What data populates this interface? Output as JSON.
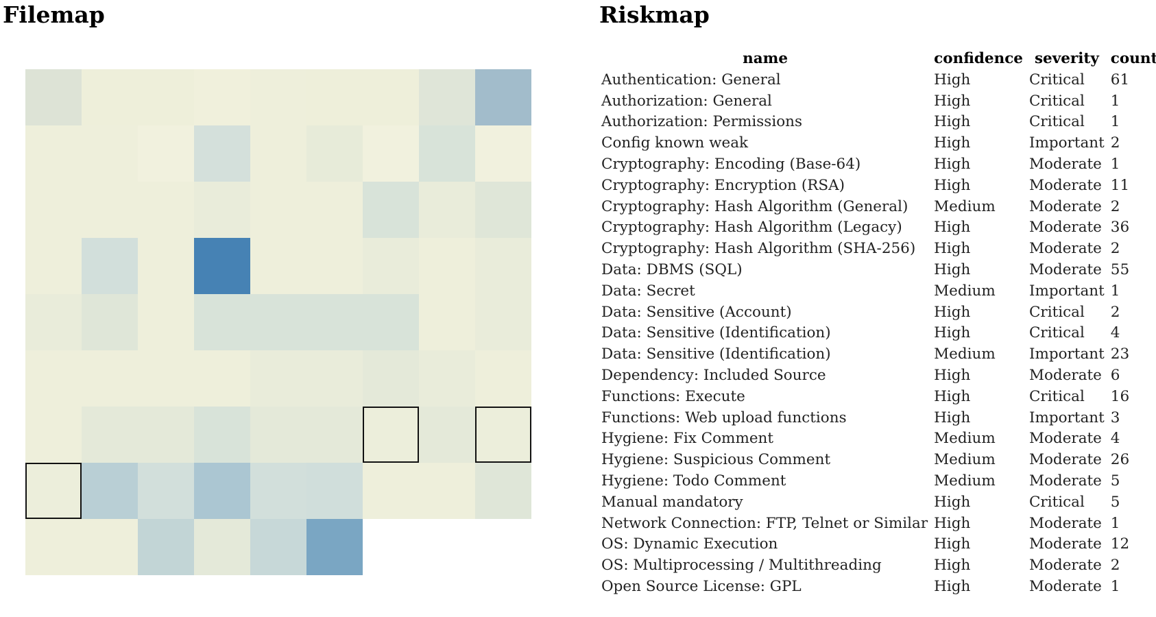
{
  "filemap": {
    "title": "Filemap",
    "rows": 9,
    "cols": 9,
    "colors": {
      "empty": "#eeeedb",
      "light": "#dde3d8",
      "mid": "#a8c4cf",
      "dark": "#4682b4",
      "selected_border": "#111111"
    },
    "cells": [
      [
        "#dde3d6",
        "#eeefda",
        "#eeefda",
        "#f0f0dc",
        "#eeefdb",
        "#eeefda",
        "#eeefda",
        "#dfe5d8",
        "#a2bccb"
      ],
      [
        "#eeefdb",
        "#eeefdb",
        "#f1f1de",
        "#d4e0db",
        "#eeefdb",
        "#e7ebd9",
        "#f1f1de",
        "#d8e3d9",
        "#f1f1de"
      ],
      [
        "#eeefdb",
        "#eeefdb",
        "#eeefdb",
        "#e9ecda",
        "#eeefdb",
        "#eeefdb",
        "#d8e3d9",
        "#e9ecda",
        "#dfe6d8"
      ],
      [
        "#eeefdb",
        "#d2dfdb",
        "#eeefdb",
        "#4682b4",
        "#eeefdb",
        "#eeefdb",
        "#e9ecda",
        "#eeefdb",
        "#e9ecda"
      ],
      [
        "#e9ecda",
        "#dfe6d8",
        "#eeefdb",
        "#d8e3d9",
        "#d8e3d9",
        "#d8e3d9",
        "#d8e3d9",
        "#eeefdb",
        "#e9ecda"
      ],
      [
        "#eeefdb",
        "#eeefdb",
        "#eeefdb",
        "#eeefdb",
        "#e9ecda",
        "#e9ecda",
        "#e4e9d9",
        "#e9ecda",
        "#eeefdb"
      ],
      [
        "#eeefdb",
        "#e4e9d9",
        "#e4e9d9",
        "#d8e3d9",
        "#e4e9d9",
        "#e4e9d9",
        "#eceedb",
        "#e4e9d9",
        "#eceedb"
      ],
      [
        "#eceedb",
        "#b9cfd5",
        "#d2dfdb",
        "#abc6d2",
        "#d2dfdb",
        "#d0dedb",
        "#eeefdb",
        "#eeefdb",
        "#dfe6d8"
      ],
      [
        "#eeefdb",
        "#eeefdb",
        "#c2d5d6",
        "#e4e9d9",
        "#c7d8d8",
        "#7aa6c3",
        null,
        null,
        null
      ]
    ],
    "selected": [
      [
        6,
        6
      ],
      [
        6,
        8
      ],
      [
        7,
        0
      ]
    ]
  },
  "riskmap": {
    "title": "Riskmap",
    "columns": {
      "name": "name",
      "confidence": "confidence",
      "severity": "severity",
      "count": "count"
    },
    "rows": [
      {
        "name": "Authentication: General",
        "confidence": "High",
        "severity": "Critical",
        "count": "61"
      },
      {
        "name": "Authorization: General",
        "confidence": "High",
        "severity": "Critical",
        "count": "1"
      },
      {
        "name": "Authorization: Permissions",
        "confidence": "High",
        "severity": "Critical",
        "count": "1"
      },
      {
        "name": "Config known weak",
        "confidence": "High",
        "severity": "Important",
        "count": "2"
      },
      {
        "name": "Cryptography: Encoding (Base-64)",
        "confidence": "High",
        "severity": "Moderate",
        "count": "1"
      },
      {
        "name": "Cryptography: Encryption (RSA)",
        "confidence": "High",
        "severity": "Moderate",
        "count": "11"
      },
      {
        "name": "Cryptography: Hash Algorithm (General)",
        "confidence": "Medium",
        "severity": "Moderate",
        "count": "2"
      },
      {
        "name": "Cryptography: Hash Algorithm (Legacy)",
        "confidence": "High",
        "severity": "Moderate",
        "count": "36"
      },
      {
        "name": "Cryptography: Hash Algorithm (SHA-256)",
        "confidence": "High",
        "severity": "Moderate",
        "count": "2"
      },
      {
        "name": "Data: DBMS (SQL)",
        "confidence": "High",
        "severity": "Moderate",
        "count": "55"
      },
      {
        "name": "Data: Secret",
        "confidence": "Medium",
        "severity": "Important",
        "count": "1"
      },
      {
        "name": "Data: Sensitive (Account)",
        "confidence": "High",
        "severity": "Critical",
        "count": "2"
      },
      {
        "name": "Data: Sensitive (Identification)",
        "confidence": "High",
        "severity": "Critical",
        "count": "4"
      },
      {
        "name": "Data: Sensitive (Identification)",
        "confidence": "Medium",
        "severity": "Important",
        "count": "23"
      },
      {
        "name": "Dependency: Included Source",
        "confidence": "High",
        "severity": "Moderate",
        "count": "6"
      },
      {
        "name": "Functions: Execute",
        "confidence": "High",
        "severity": "Critical",
        "count": "16"
      },
      {
        "name": "Functions: Web upload functions",
        "confidence": "High",
        "severity": "Important",
        "count": "3"
      },
      {
        "name": "Hygiene: Fix Comment",
        "confidence": "Medium",
        "severity": "Moderate",
        "count": "4"
      },
      {
        "name": "Hygiene: Suspicious Comment",
        "confidence": "Medium",
        "severity": "Moderate",
        "count": "26"
      },
      {
        "name": "Hygiene: Todo Comment",
        "confidence": "Medium",
        "severity": "Moderate",
        "count": "5"
      },
      {
        "name": "Manual mandatory",
        "confidence": "High",
        "severity": "Critical",
        "count": "5"
      },
      {
        "name": "Network Connection: FTP, Telnet or Similar",
        "confidence": "High",
        "severity": "Moderate",
        "count": "1"
      },
      {
        "name": "OS: Dynamic Execution",
        "confidence": "High",
        "severity": "Moderate",
        "count": "12"
      },
      {
        "name": "OS: Multiprocessing / Multithreading",
        "confidence": "High",
        "severity": "Moderate",
        "count": "2"
      },
      {
        "name": "Open Source License: GPL",
        "confidence": "High",
        "severity": "Moderate",
        "count": "1"
      }
    ]
  }
}
